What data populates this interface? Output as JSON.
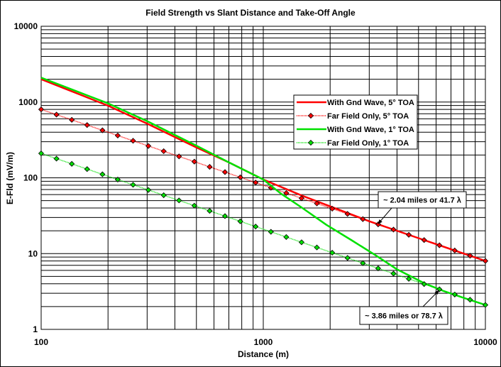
{
  "chart_data": {
    "type": "line",
    "title": "Field Strength  vs  Slant Distance and Take-Off Angle",
    "xlabel": "Distance (m)",
    "ylabel": "E-Fld (mV/m)",
    "xscale": "log",
    "yscale": "log",
    "xlim": [
      100,
      10000
    ],
    "ylim": [
      1,
      10000
    ],
    "xticks": [
      "100",
      "1000",
      "10000"
    ],
    "yticks": [
      "1",
      "10",
      "100",
      "1000",
      "10000"
    ],
    "grid": true,
    "legend_position": "right-center",
    "series": [
      {
        "name": "With Gnd Wave, 5° TOA",
        "color": "#ff0000",
        "markers": false,
        "points": [
          [
            100,
            2000
          ],
          [
            150,
            1250
          ],
          [
            200,
            895
          ],
          [
            300,
            520
          ],
          [
            500,
            251
          ],
          [
            700,
            160
          ],
          [
            1000,
            95
          ],
          [
            1500,
            58
          ],
          [
            2000,
            42
          ],
          [
            3000,
            26.7
          ],
          [
            5000,
            16
          ],
          [
            10000,
            8
          ]
        ]
      },
      {
        "name": "Far Field Only, 5° TOA",
        "color": "#ff0000",
        "markers": true,
        "formula": "800*100/x",
        "points_count": 30,
        "points": [
          [
            100,
            800
          ],
          [
            1000,
            80
          ],
          [
            10000,
            8
          ]
        ]
      },
      {
        "name": "With Gnd Wave, 1° TOA",
        "color": "#00e000",
        "markers": false,
        "points": [
          [
            100,
            2100
          ],
          [
            200,
            960
          ],
          [
            300,
            560
          ],
          [
            500,
            265
          ],
          [
            700,
            160
          ],
          [
            1000,
            95
          ],
          [
            1200,
            62
          ],
          [
            1500,
            40
          ],
          [
            1923,
            24
          ],
          [
            2500,
            15
          ],
          [
            3220,
            9.4
          ],
          [
            4000,
            6.2
          ],
          [
            5370,
            4.0
          ],
          [
            6500,
            3.2
          ],
          [
            8000,
            2.6
          ],
          [
            10000,
            2.1
          ]
        ]
      },
      {
        "name": "Far Field Only, 1° TOA",
        "color": "#00e000",
        "markers": true,
        "formula": "210*100/x",
        "points_count": 30,
        "points": [
          [
            100,
            210
          ],
          [
            1000,
            21
          ],
          [
            10000,
            2.1
          ]
        ]
      }
    ],
    "annotations": [
      {
        "text": "~ 2.04 miles or 41.7 λ",
        "target": [
          3280,
          24.5
        ]
      },
      {
        "text": "~ 3.86 miles or 78.7 λ",
        "target": [
          6200,
          3.3
        ]
      }
    ]
  }
}
